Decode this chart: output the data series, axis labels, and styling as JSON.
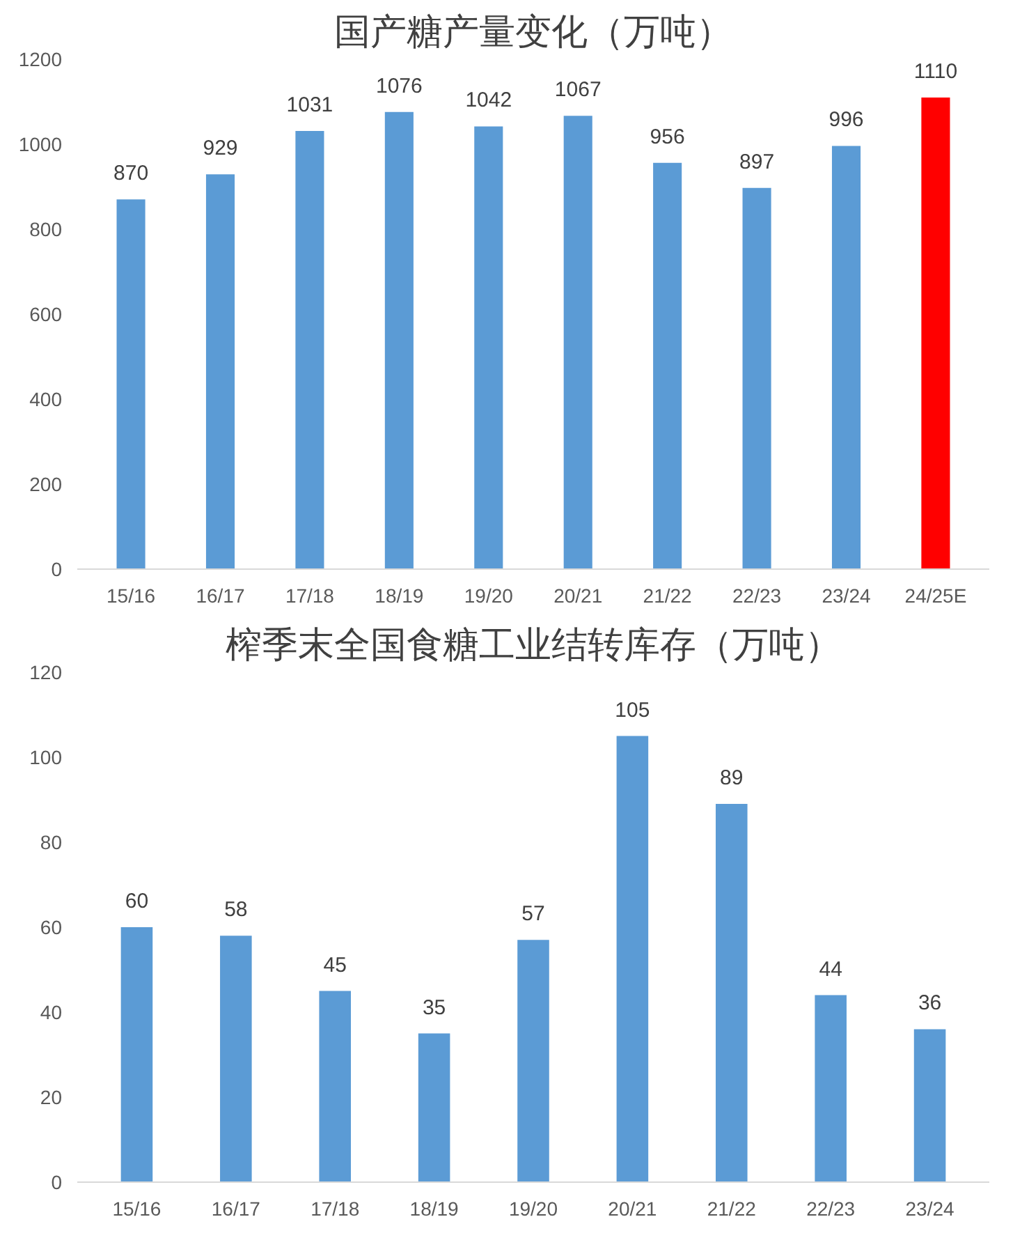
{
  "chart_data": [
    {
      "type": "bar",
      "title": "国产糖产量变化（万吨）",
      "categories": [
        "15/16",
        "16/17",
        "17/18",
        "18/19",
        "19/20",
        "20/21",
        "21/22",
        "22/23",
        "23/24",
        "24/25E"
      ],
      "values": [
        870,
        929,
        1031,
        1076,
        1042,
        1067,
        956,
        897,
        996,
        1110
      ],
      "colors": [
        "#5b9bd5",
        "#5b9bd5",
        "#5b9bd5",
        "#5b9bd5",
        "#5b9bd5",
        "#5b9bd5",
        "#5b9bd5",
        "#5b9bd5",
        "#5b9bd5",
        "#ff0000"
      ],
      "ylim": [
        0,
        1200
      ],
      "yticks": [
        0,
        200,
        400,
        600,
        800,
        1000,
        1200
      ],
      "grid": false,
      "data_labels": true
    },
    {
      "type": "bar",
      "title": "榨季末全国食糖工业结转库存（万吨）",
      "categories": [
        "15/16",
        "16/17",
        "17/18",
        "18/19",
        "19/20",
        "20/21",
        "21/22",
        "22/23",
        "23/24"
      ],
      "values": [
        60,
        58,
        45,
        35,
        57,
        105,
        89,
        44,
        36
      ],
      "color": "#5b9bd5",
      "ylim": [
        0,
        120
      ],
      "yticks": [
        0,
        20,
        40,
        60,
        80,
        100,
        120
      ],
      "grid": false,
      "data_labels": true
    }
  ]
}
